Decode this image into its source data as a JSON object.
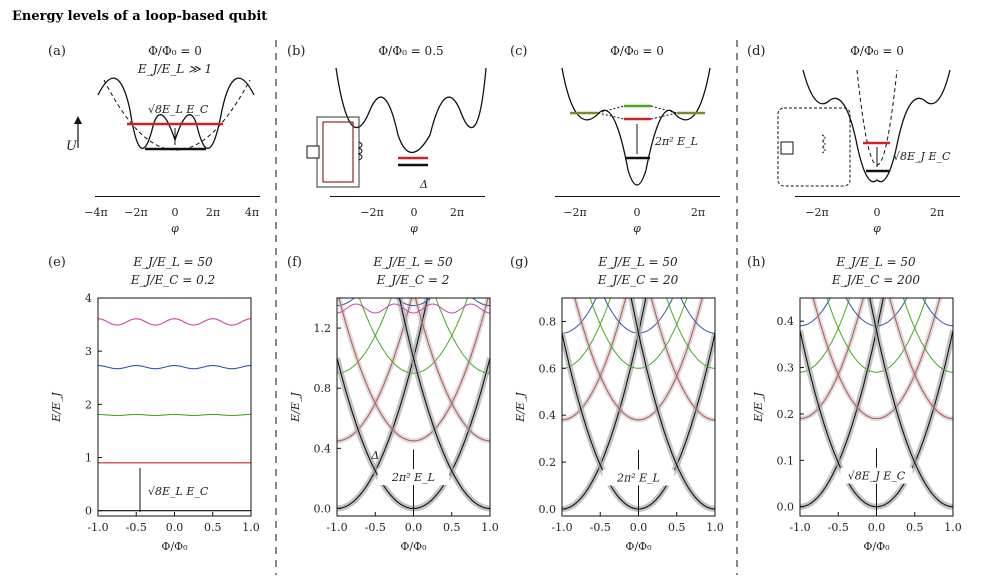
{
  "title": "Energy levels of a loop-based qubit",
  "colors": {
    "red": "#cc2222",
    "green": "#44aa22",
    "olive": "#7a8a2a",
    "blue": "#3355aa",
    "magenta": "#cc44aa",
    "black": "#111111",
    "gray": "#aaaaaa",
    "brown": "#8b2a1a"
  },
  "top_panels": [
    {
      "label": "(a)",
      "line1": "Φ/Φ₀ = 0",
      "line2": "E_J/E_L ≫ 1",
      "annot": "√8E_L E_C",
      "ylabel": "U",
      "xlabel": "φ",
      "xticks": [
        "−4π",
        "−2π",
        "0",
        "2π",
        "4π"
      ]
    },
    {
      "label": "(b)",
      "line1": "Φ/Φ₀ = 0.5",
      "line2": "",
      "annot": "Δ",
      "xlabel": "φ",
      "xticks": [
        "−2π",
        "0",
        "2π"
      ]
    },
    {
      "label": "(c)",
      "line1": "Φ/Φ₀ = 0",
      "line2": "",
      "annot": "2π² E_L",
      "xlabel": "φ",
      "xticks": [
        "−2π",
        "0",
        "2π"
      ]
    },
    {
      "label": "(d)",
      "line1": "Φ/Φ₀ = 0",
      "line2": "",
      "annot": "√8E_J E_C",
      "xlabel": "φ",
      "xticks": [
        "−2π",
        "0",
        "2π"
      ]
    }
  ],
  "bottom_panels": [
    {
      "label": "(e)",
      "line1": "E_J/E_L = 50",
      "line2": "E_J/E_C = 0.2",
      "annot": "√8E_L E_C"
    },
    {
      "label": "(f)",
      "line1": "E_J/E_L = 50",
      "line2": "E_J/E_C = 2",
      "annot": "2π² E_L",
      "annot2": "Δ"
    },
    {
      "label": "(g)",
      "line1": "E_J/E_L = 50",
      "line2": "E_J/E_C = 20",
      "annot": "2π² E_L"
    },
    {
      "label": "(h)",
      "line1": "E_J/E_L = 50",
      "line2": "E_J/E_C = 200",
      "annot": "√8E_J E_C"
    }
  ],
  "chart_data": [
    {
      "type": "line",
      "panel": "(e)",
      "xlabel": "Φ/Φ₀",
      "ylabel": "E/E_J",
      "xlim": [
        -1,
        1
      ],
      "ylim": [
        -0.1,
        4
      ],
      "xticks": [
        "-1.0",
        "-0.5",
        "0.0",
        "0.5",
        "1.0"
      ],
      "yticks": [
        "0",
        "1",
        "2",
        "3",
        "4"
      ],
      "series": [
        {
          "color": "black",
          "levels": [
            0.0
          ],
          "ripple": 0.0
        },
        {
          "color": "red",
          "levels": [
            0.9
          ],
          "ripple": 0.0
        },
        {
          "color": "green",
          "levels": [
            1.8
          ],
          "ripple": 0.01
        },
        {
          "color": "blue",
          "levels": [
            2.7
          ],
          "ripple": 0.03
        },
        {
          "color": "magenta",
          "levels": [
            3.55
          ],
          "ripple": 0.06
        }
      ]
    },
    {
      "type": "line",
      "panel": "(f)",
      "xlabel": "Φ/Φ₀",
      "ylabel": "E/E_J",
      "xlim": [
        -1,
        1
      ],
      "ylim": [
        -0.05,
        1.4
      ],
      "xticks": [
        "-1.0",
        "-0.5",
        "0.0",
        "0.5",
        "1.0"
      ],
      "yticks": [
        "0.0",
        "0.4",
        "0.8",
        "1.2"
      ]
    },
    {
      "type": "line",
      "panel": "(g)",
      "xlabel": "Φ/Φ₀",
      "ylabel": "E/E_J",
      "xlim": [
        -1,
        1
      ],
      "ylim": [
        -0.03,
        0.9
      ],
      "xticks": [
        "-1.0",
        "-0.5",
        "0.0",
        "0.5",
        "1.0"
      ],
      "yticks": [
        "0.0",
        "0.2",
        "0.4",
        "0.6",
        "0.8"
      ]
    },
    {
      "type": "line",
      "panel": "(h)",
      "xlabel": "Φ/Φ₀",
      "ylabel": "E/E_J",
      "xlim": [
        -1,
        1
      ],
      "ylim": [
        -0.02,
        0.45
      ],
      "xticks": [
        "-1.0",
        "-0.5",
        "0.0",
        "0.5",
        "1.0"
      ],
      "yticks": [
        "0.0",
        "0.1",
        "0.2",
        "0.3",
        "0.4"
      ]
    }
  ]
}
